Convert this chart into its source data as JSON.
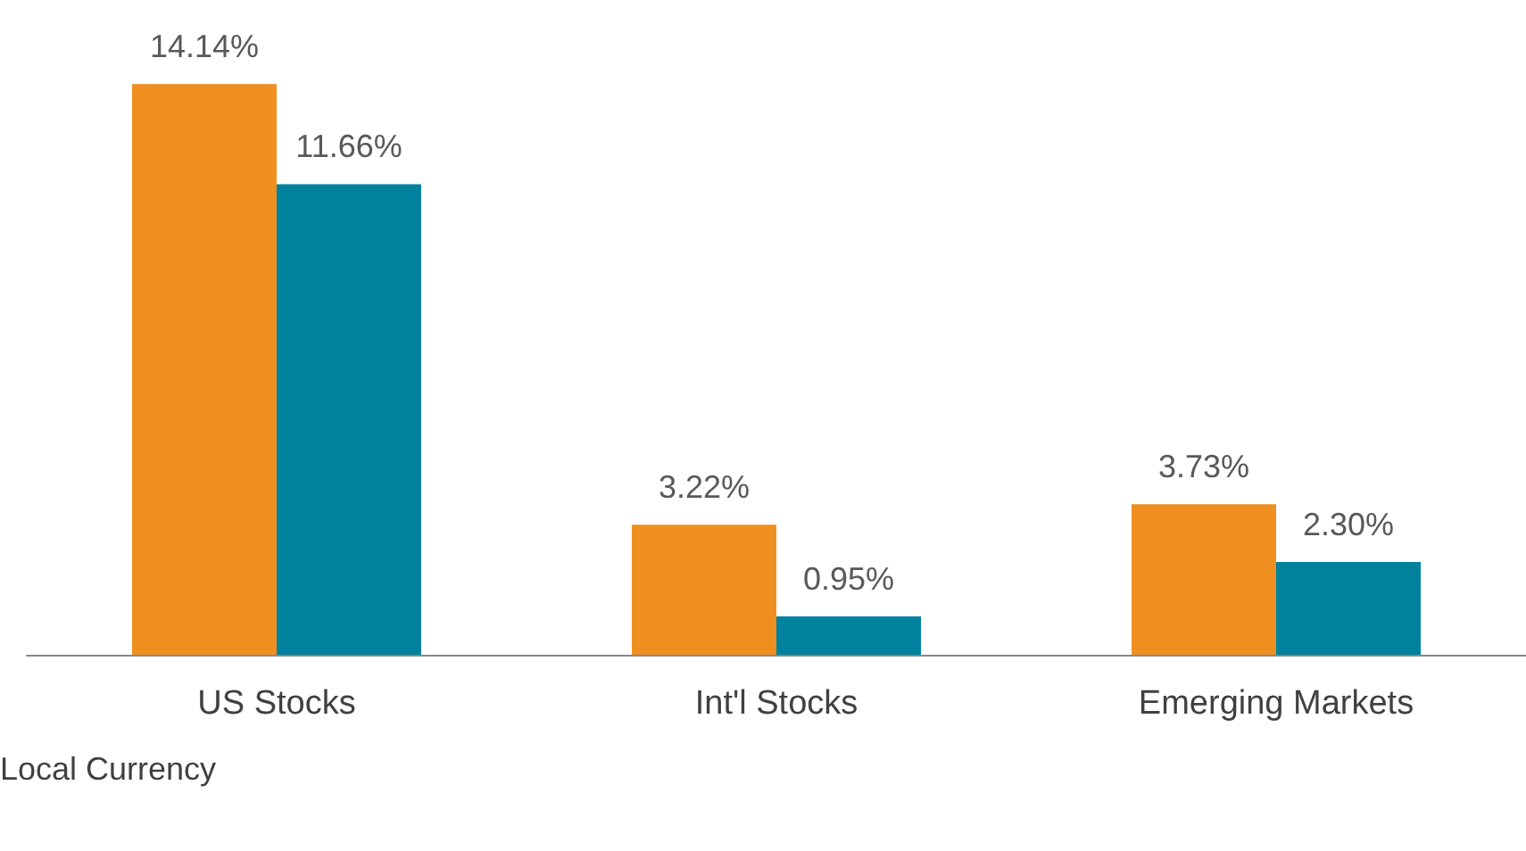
{
  "chart_data": {
    "type": "bar",
    "categories": [
      "US Stocks",
      "Int'l Stocks",
      "Emerging Markets"
    ],
    "series": [
      {
        "color": "#ee8f1f",
        "values": [
          14.14,
          3.22,
          3.73
        ],
        "value_labels": [
          "14.14%",
          "3.22%",
          "3.73%"
        ]
      },
      {
        "color": "#00829e",
        "values": [
          11.66,
          0.95,
          2.3
        ],
        "value_labels": [
          "11.66%",
          "0.95%",
          "2.30%"
        ]
      }
    ],
    "annotations": [
      "Local Currency"
    ]
  }
}
